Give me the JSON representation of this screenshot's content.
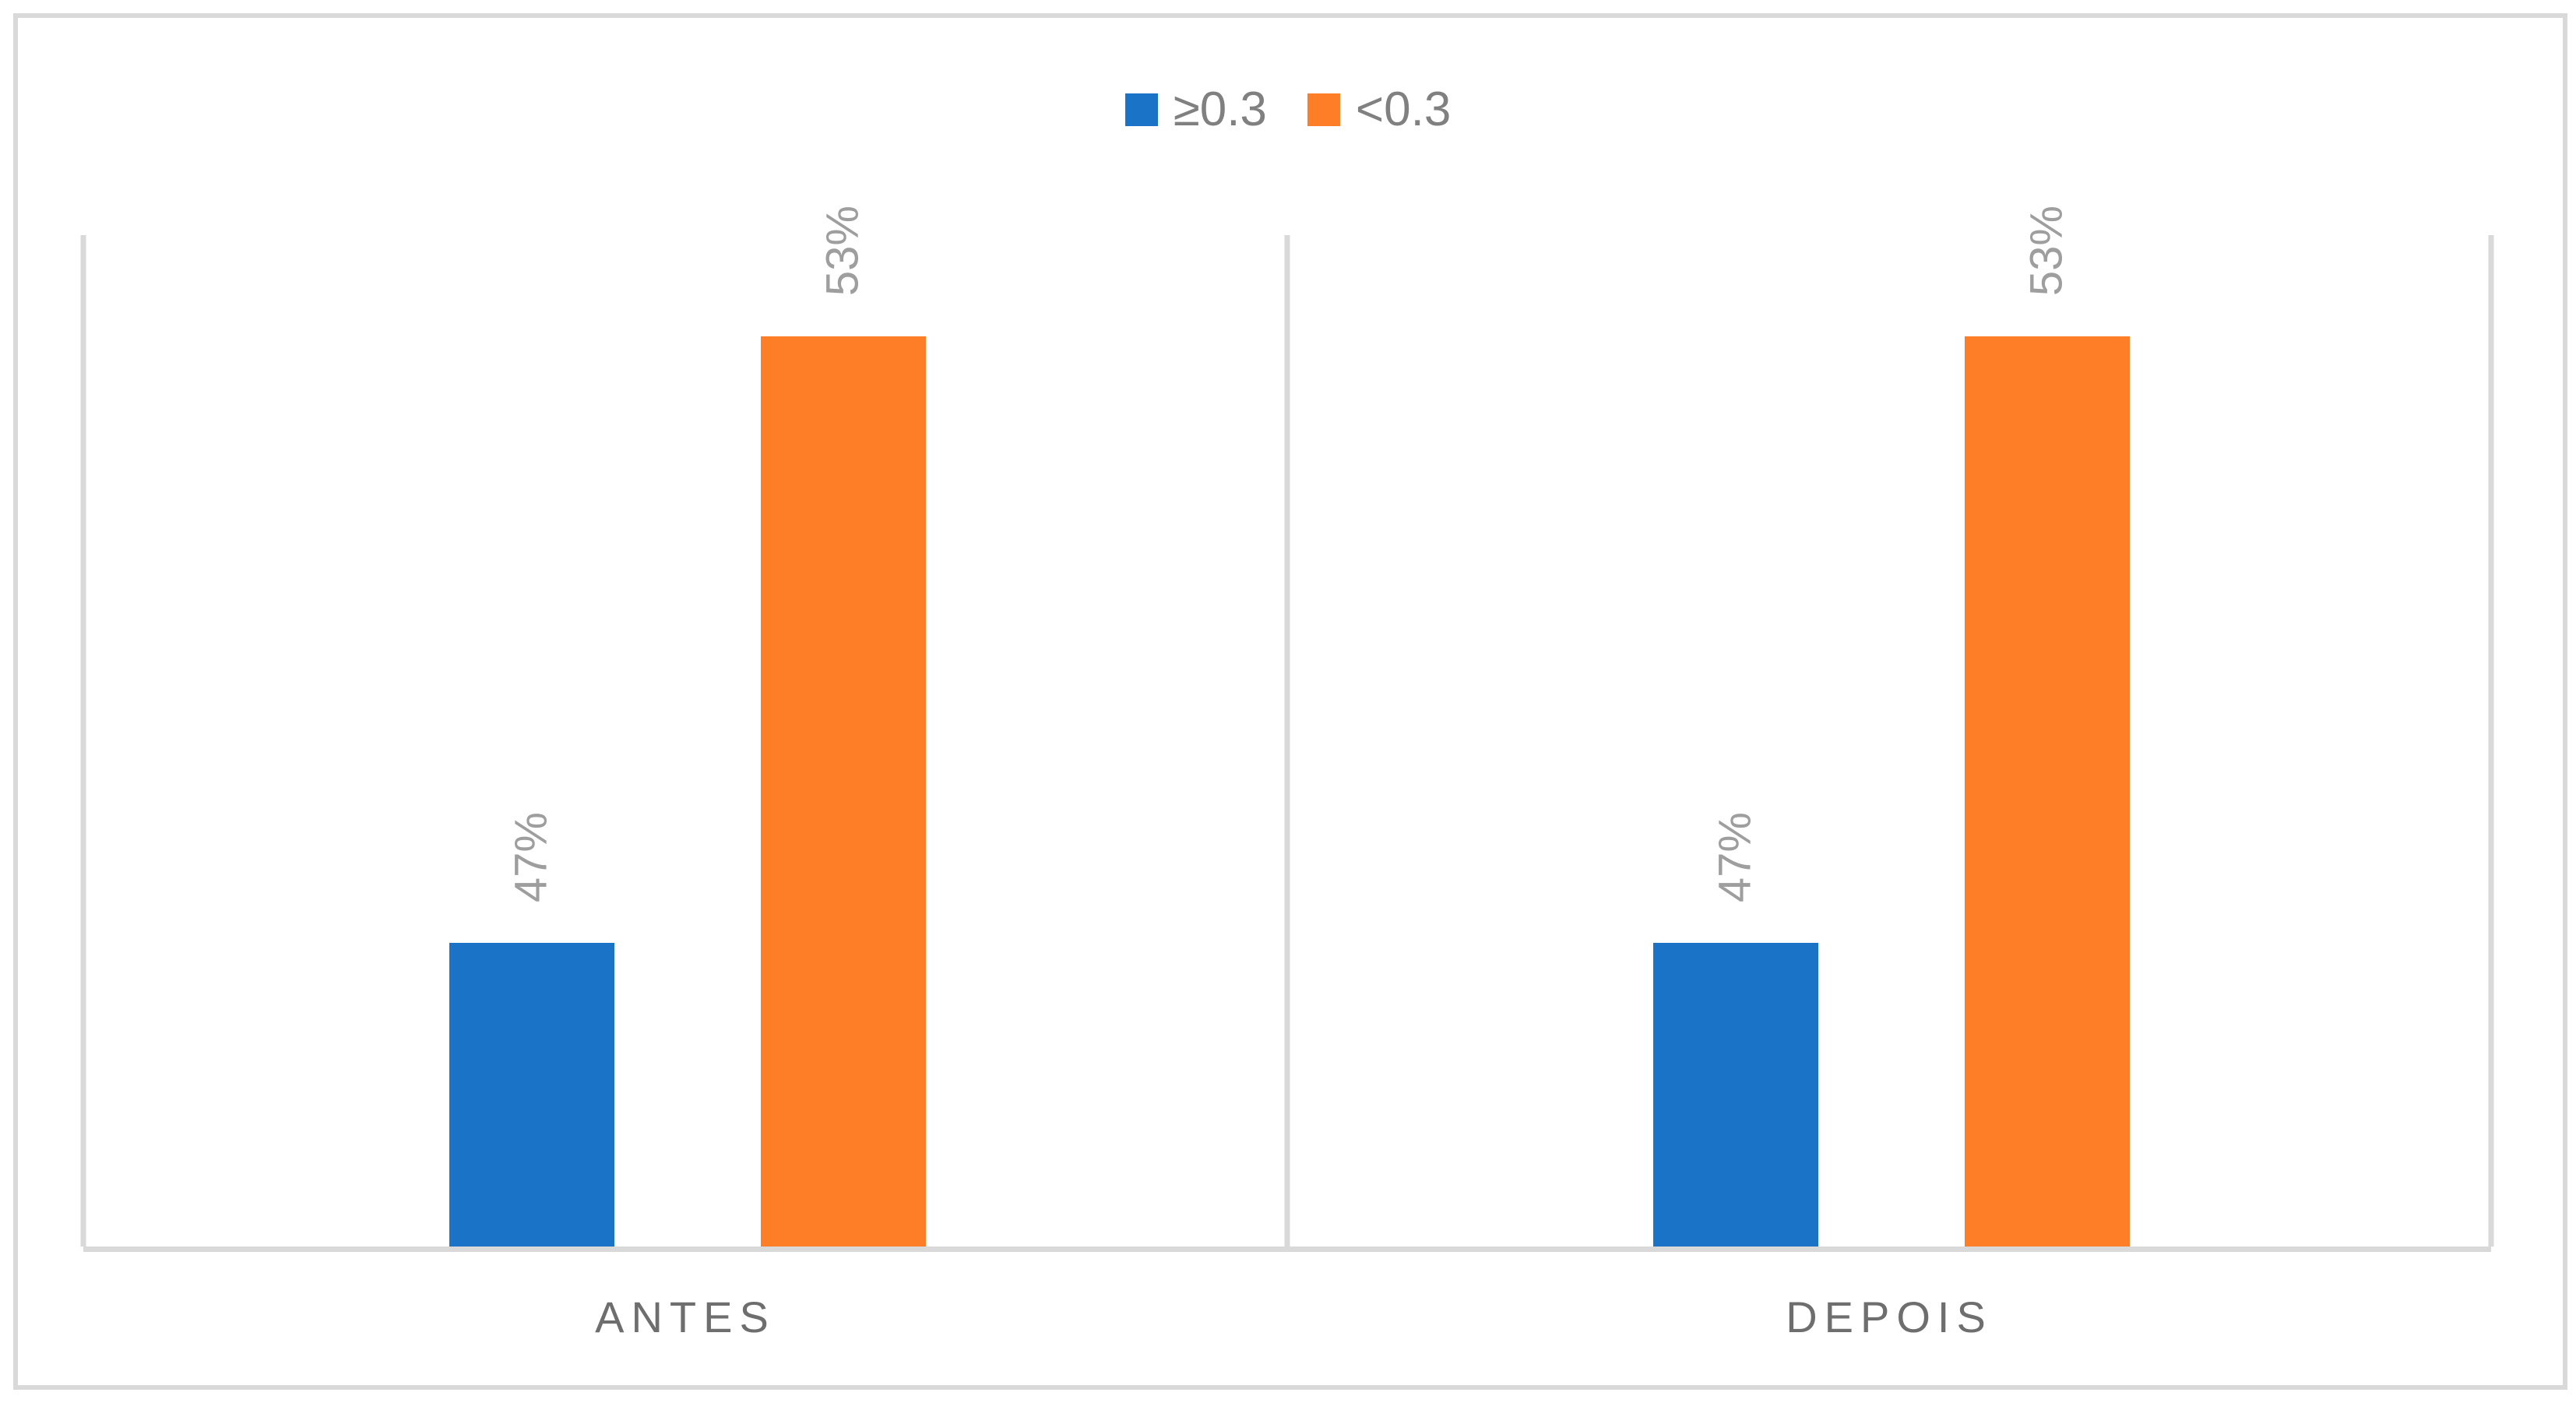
{
  "chart_data": {
    "type": "bar",
    "title": "",
    "categories": [
      "ANTES",
      "DEPOIS"
    ],
    "series": [
      {
        "name": "≥0.3",
        "color": "#1B73C7",
        "values": [
          47,
          47
        ],
        "data_labels": [
          "47%",
          "47%"
        ]
      },
      {
        "name": "<0.3",
        "color": "#FD7E27",
        "values": [
          53,
          53
        ],
        "data_labels": [
          "53%",
          "53%"
        ]
      }
    ],
    "value_axis": {
      "min": 44,
      "max": 54,
      "unit": "%",
      "labels_visible": false
    },
    "category_axis": {
      "labels_visible": true
    },
    "legend": {
      "position": "top"
    },
    "gridlines": {
      "horizontal": false,
      "vertical_category_separators": true
    },
    "data_label_rotation": -90
  },
  "styles": {
    "series_blue": "#1B73C7",
    "series_orange": "#FD7E27",
    "axis_and_border_color": "#D9D9D9",
    "legend_text_color": "#808080",
    "data_label_color": "#9E9E9E",
    "category_label_color": "#6E6E6E",
    "background": "#FFFFFF"
  }
}
